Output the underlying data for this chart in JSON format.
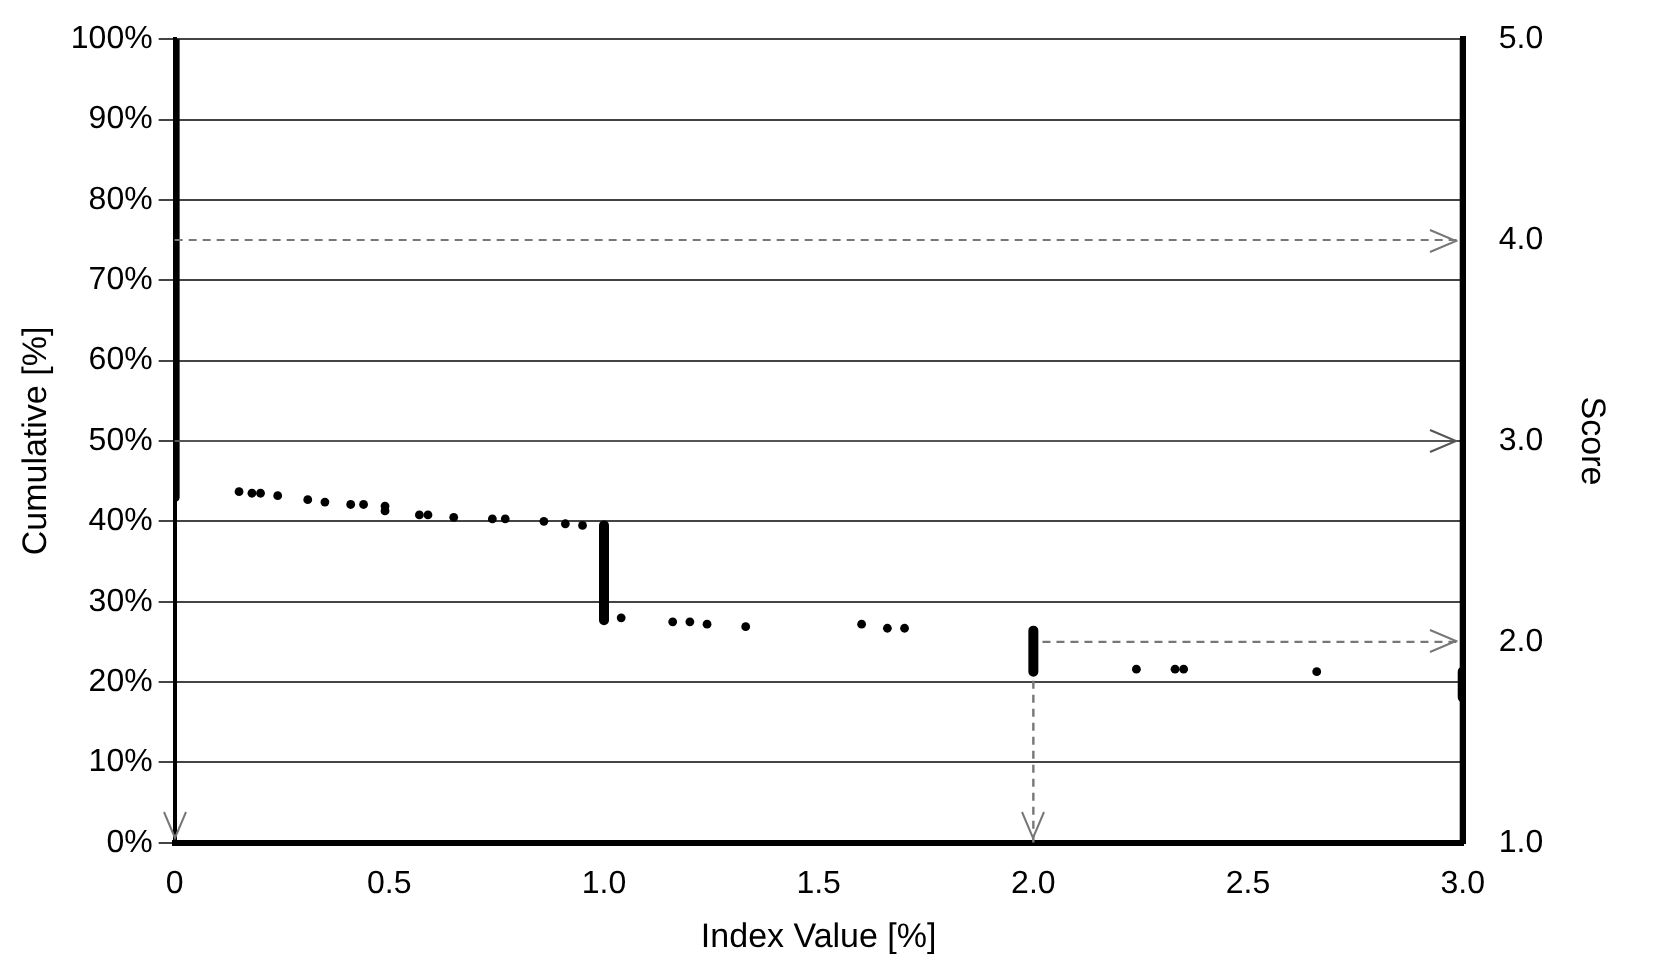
{
  "chart_data": {
    "type": "scatter",
    "xlabel": "Index Value [%]",
    "ylabel": "Cumulative [%]",
    "y2label": "Score",
    "xlim": [
      0,
      3
    ],
    "xticks": [
      0,
      0.5,
      {
        "value": 1,
        "label": "1.0"
      },
      1.5,
      {
        "value": 2,
        "label": "2.0"
      },
      2.5,
      {
        "value": 3,
        "label": "3.0"
      }
    ],
    "ylim": [
      0,
      100
    ],
    "yticks": [
      {
        "value": 0,
        "label": "0%"
      },
      {
        "value": 10,
        "label": "10%"
      },
      {
        "value": 20,
        "label": "20%"
      },
      {
        "value": 30,
        "label": "30%"
      },
      {
        "value": 40,
        "label": "40%"
      },
      {
        "value": 50,
        "label": "50%"
      },
      {
        "value": 60,
        "label": "60%"
      },
      {
        "value": 70,
        "label": "70%"
      },
      {
        "value": 80,
        "label": "80%"
      },
      {
        "value": 90,
        "label": "90%"
      },
      {
        "value": 100,
        "label": "100%"
      }
    ],
    "y2lim": [
      1,
      5
    ],
    "y2ticks": [
      {
        "value": 1,
        "label": "1.0"
      },
      {
        "value": 2,
        "label": "2.0"
      },
      {
        "value": 3,
        "label": "3.0"
      },
      {
        "value": 4,
        "label": "4.0"
      },
      {
        "value": 5,
        "label": "5.0"
      }
    ],
    "grid": "y",
    "legend": false,
    "marker": "circle",
    "ref_lines": [
      {
        "axis": "y2",
        "value": 4,
        "color": "#777777",
        "line_style": "dashed"
      },
      {
        "axis": "y2",
        "value": 3,
        "color": "#555555",
        "line_style": "solid"
      }
    ],
    "series": [
      {
        "color": "#000000",
        "x": [
          0.15,
          0.18,
          0.2,
          0.24,
          0.31,
          0.35,
          0.41,
          0.44,
          0.49,
          0.49,
          0.57,
          0.59,
          0.65,
          0.74,
          0.77,
          0.86,
          0.91,
          0.95,
          1.04,
          1.16,
          1.2,
          1.24,
          1.33,
          1.6,
          1.66,
          1.7,
          2.24,
          2.33,
          2.35,
          2.66
        ],
        "values": [
          43.7,
          43.5,
          43.5,
          43.2,
          42.7,
          42.4,
          42.1,
          42.1,
          41.9,
          41.3,
          40.8,
          40.8,
          40.5,
          40.3,
          40.3,
          40,
          39.7,
          39.5,
          28,
          27.5,
          27.5,
          27.2,
          26.9,
          27.2,
          26.7,
          26.7,
          21.6,
          21.6,
          21.6,
          21.3
        ]
      },
      {
        "type": "line",
        "color": "#000000",
        "marker": "none",
        "line_style": "solid",
        "x": [
          0,
          0,
          0.5,
          1,
          1,
          1.5,
          2,
          2,
          2.5,
          3,
          3
        ],
        "values": [
          100,
          43,
          null,
          39.5,
          27.7,
          null,
          26.4,
          21.3,
          null,
          21.3,
          18.1
        ]
      },
      {
        "type": "line",
        "color": "#777777",
        "marker": "none",
        "line_style": "dashed",
        "x": [
          2,
          2,
          3
        ],
        "values": [
          0,
          25,
          25
        ]
      }
    ]
  }
}
